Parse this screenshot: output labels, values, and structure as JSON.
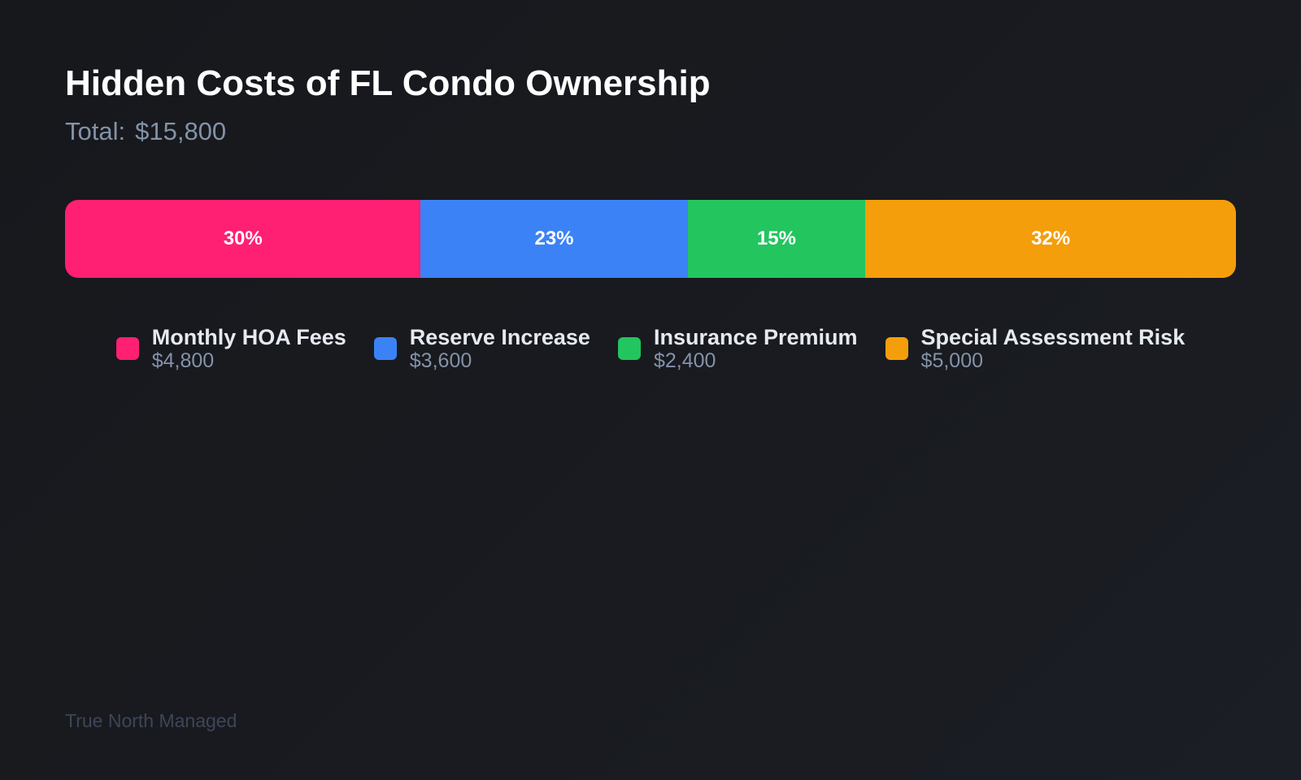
{
  "title": "Hidden Costs of FL Condo Ownership",
  "total_label": "Total:",
  "total_value": "$15,800",
  "footer": "True North Managed",
  "chart_data": {
    "type": "bar",
    "orientation": "horizontal-stacked-100",
    "title": "Hidden Costs of FL Condo Ownership",
    "categories": [
      "Monthly HOA Fees",
      "Reserve Increase",
      "Insurance Premium",
      "Special Assessment Risk"
    ],
    "values": [
      4800,
      3600,
      2400,
      5000
    ],
    "value_labels": [
      "$4,800",
      "$3,600",
      "$2,400",
      "$5,000"
    ],
    "percent_labels": [
      "30%",
      "23%",
      "15%",
      "32%"
    ],
    "colors": [
      "#ff1f73",
      "#3b82f6",
      "#22c55e",
      "#f59e0b"
    ],
    "legend": "bottom",
    "grid": false
  }
}
